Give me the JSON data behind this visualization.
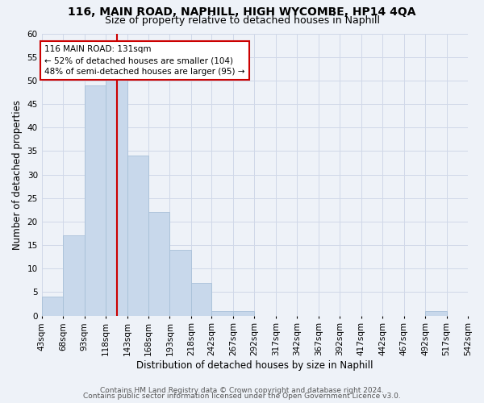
{
  "title1": "116, MAIN ROAD, NAPHILL, HIGH WYCOMBE, HP14 4QA",
  "title2": "Size of property relative to detached houses in Naphill",
  "xlabel": "Distribution of detached houses by size in Naphill",
  "ylabel": "Number of detached properties",
  "bin_edges": [
    43,
    68,
    93,
    118,
    143,
    168,
    193,
    218,
    242,
    267,
    292,
    317,
    342,
    367,
    392,
    417,
    442,
    467,
    492,
    517,
    542
  ],
  "bar_heights": [
    4,
    17,
    49,
    51,
    34,
    22,
    14,
    7,
    1,
    1,
    0,
    0,
    0,
    0,
    0,
    0,
    0,
    0,
    1,
    0
  ],
  "bar_color": "#c8d8eb",
  "bar_edgecolor": "#a8c0d8",
  "vline_x": 131,
  "vline_color": "#cc0000",
  "annotation_line1": "116 MAIN ROAD: 131sqm",
  "annotation_line2": "← 52% of detached houses are smaller (104)",
  "annotation_line3": "48% of semi-detached houses are larger (95) →",
  "annotation_box_edgecolor": "#cc0000",
  "annotation_box_facecolor": "#ffffff",
  "ylim": [
    0,
    60
  ],
  "yticks": [
    0,
    5,
    10,
    15,
    20,
    25,
    30,
    35,
    40,
    45,
    50,
    55,
    60
  ],
  "footer1": "Contains HM Land Registry data © Crown copyright and database right 2024.",
  "footer2": "Contains public sector information licensed under the Open Government Licence v3.0.",
  "title1_fontsize": 10,
  "title2_fontsize": 9,
  "xlabel_fontsize": 8.5,
  "ylabel_fontsize": 8.5,
  "tick_fontsize": 7.5,
  "annotation_fontsize": 7.5,
  "footer_fontsize": 6.5,
  "grid_color": "#d0d8e8",
  "background_color": "#eef2f8"
}
